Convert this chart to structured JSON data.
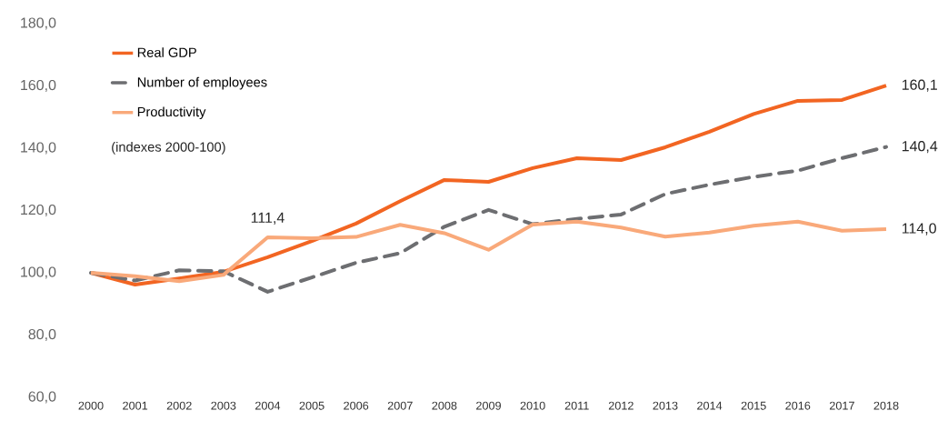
{
  "chart_data": {
    "type": "line",
    "x": [
      2000,
      2001,
      2002,
      2003,
      2004,
      2005,
      2006,
      2007,
      2008,
      2009,
      2010,
      2011,
      2012,
      2013,
      2014,
      2015,
      2016,
      2017,
      2018
    ],
    "series": [
      {
        "name": "Real GDP",
        "color": "#f26522",
        "line_style": "solid",
        "values": [
          100,
          96.2,
          98.2,
          100.3,
          105,
          110.2,
          115.8,
          123,
          129.8,
          129.2,
          133.6,
          136.8,
          136.2,
          140.3,
          145.3,
          151,
          155.2,
          155.5,
          160.1
        ],
        "value_labels": [
          null,
          null,
          null,
          null,
          null,
          null,
          null,
          null,
          null,
          null,
          null,
          null,
          null,
          null,
          null,
          null,
          null,
          null,
          "160,1"
        ]
      },
      {
        "name": "Number of employees",
        "color": "#6d6e71",
        "line_style": "dashed",
        "values": [
          100,
          97.5,
          100.8,
          100.5,
          93.9,
          98.5,
          103.2,
          106.3,
          114.8,
          120.2,
          115.6,
          117.3,
          118.7,
          125.3,
          128.3,
          130.8,
          132.8,
          136.8,
          140.4
        ],
        "value_labels": [
          null,
          null,
          null,
          null,
          null,
          null,
          null,
          null,
          null,
          null,
          null,
          null,
          null,
          null,
          null,
          null,
          null,
          null,
          "140,4"
        ]
      },
      {
        "name": "Productivity",
        "color": "#f9a97a",
        "line_style": "solid",
        "values": [
          100,
          98.9,
          97.3,
          99.3,
          111.4,
          111.1,
          111.5,
          115.4,
          112.7,
          107.4,
          115.5,
          116.4,
          114.5,
          111.6,
          112.9,
          115.1,
          116.4,
          113.5,
          114.0
        ],
        "value_labels": [
          null,
          null,
          null,
          null,
          "111,4",
          null,
          null,
          null,
          null,
          null,
          null,
          null,
          null,
          null,
          null,
          null,
          null,
          null,
          "114,0"
        ]
      }
    ],
    "xlim": [
      2000,
      2018
    ],
    "xticks": [
      2000,
      2001,
      2002,
      2003,
      2004,
      2005,
      2006,
      2007,
      2008,
      2009,
      2010,
      2011,
      2012,
      2013,
      2014,
      2015,
      2016,
      2017,
      2018
    ],
    "ylim": [
      60,
      180
    ],
    "yticks": [
      {
        "value": 60,
        "label": "60,0"
      },
      {
        "value": 80,
        "label": "80,0"
      },
      {
        "value": 100,
        "label": "100,0"
      },
      {
        "value": 120,
        "label": "120,0"
      },
      {
        "value": 140,
        "label": "140,0"
      },
      {
        "value": 160,
        "label": "160,0"
      },
      {
        "value": 180,
        "label": "180,0"
      }
    ],
    "grid": false,
    "legend": "top left",
    "marker": "none",
    "annotations": [
      "(indexes 2000-100)"
    ]
  }
}
